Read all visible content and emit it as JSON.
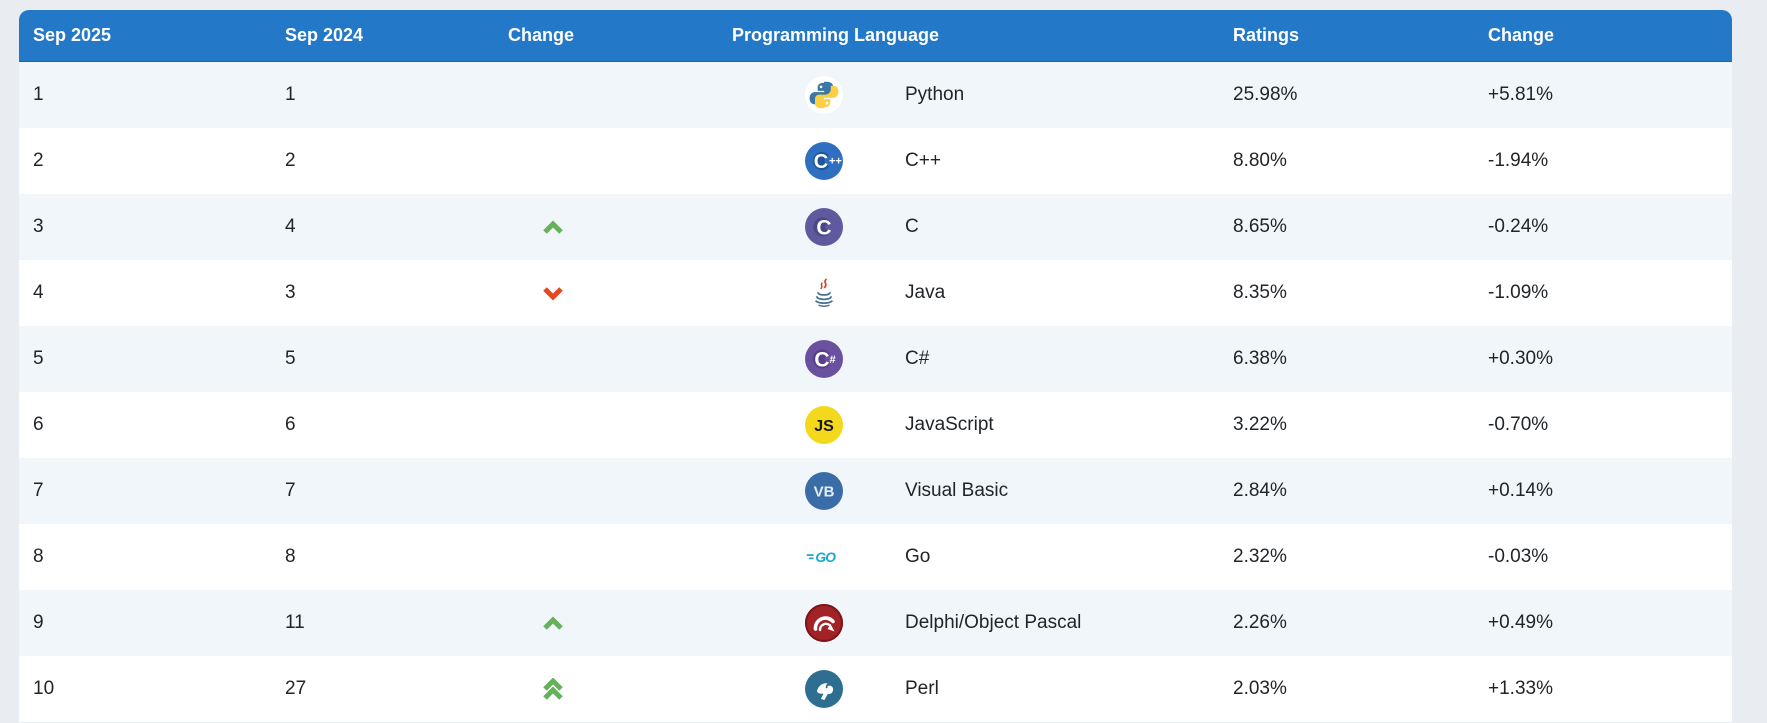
{
  "table": {
    "headers": {
      "sep2025": "Sep 2025",
      "sep2024": "Sep 2024",
      "change_position": "Change",
      "language": "Programming Language",
      "ratings": "Ratings",
      "change_ratings": "Change"
    },
    "rows": [
      {
        "rank_now": "1",
        "rank_prev": "1",
        "position_change": "none",
        "icon": "python-icon",
        "language": "Python",
        "ratings": "25.98%",
        "change": "+5.81%"
      },
      {
        "rank_now": "2",
        "rank_prev": "2",
        "position_change": "none",
        "icon": "cpp-icon",
        "language": "C++",
        "ratings": "8.80%",
        "change": "-1.94%"
      },
      {
        "rank_now": "3",
        "rank_prev": "4",
        "position_change": "up",
        "icon": "c-icon",
        "language": "C",
        "ratings": "8.65%",
        "change": "-0.24%"
      },
      {
        "rank_now": "4",
        "rank_prev": "3",
        "position_change": "down",
        "icon": "java-icon",
        "language": "Java",
        "ratings": "8.35%",
        "change": "-1.09%"
      },
      {
        "rank_now": "5",
        "rank_prev": "5",
        "position_change": "none",
        "icon": "csharp-icon",
        "language": "C#",
        "ratings": "6.38%",
        "change": "+0.30%"
      },
      {
        "rank_now": "6",
        "rank_prev": "6",
        "position_change": "none",
        "icon": "javascript-icon",
        "language": "JavaScript",
        "ratings": "3.22%",
        "change": "-0.70%"
      },
      {
        "rank_now": "7",
        "rank_prev": "7",
        "position_change": "none",
        "icon": "visual-basic-icon",
        "language": "Visual Basic",
        "ratings": "2.84%",
        "change": "+0.14%"
      },
      {
        "rank_now": "8",
        "rank_prev": "8",
        "position_change": "none",
        "icon": "go-icon",
        "language": "Go",
        "ratings": "2.32%",
        "change": "-0.03%"
      },
      {
        "rank_now": "9",
        "rank_prev": "11",
        "position_change": "up",
        "icon": "delphi-icon",
        "language": "Delphi/Object Pascal",
        "ratings": "2.26%",
        "change": "+0.49%"
      },
      {
        "rank_now": "10",
        "rank_prev": "27",
        "position_change": "up-double",
        "icon": "perl-icon",
        "language": "Perl",
        "ratings": "2.03%",
        "change": "+1.33%"
      }
    ]
  },
  "colors": {
    "header_bg": "#2478c8",
    "header_text": "#ffffff",
    "row_alt_bg": "#f1f6fa",
    "row_bg": "#ffffff",
    "page_bg": "#e9edf2",
    "text": "#212529",
    "up_arrow": "#66b25c",
    "down_arrow": "#e5471f"
  }
}
